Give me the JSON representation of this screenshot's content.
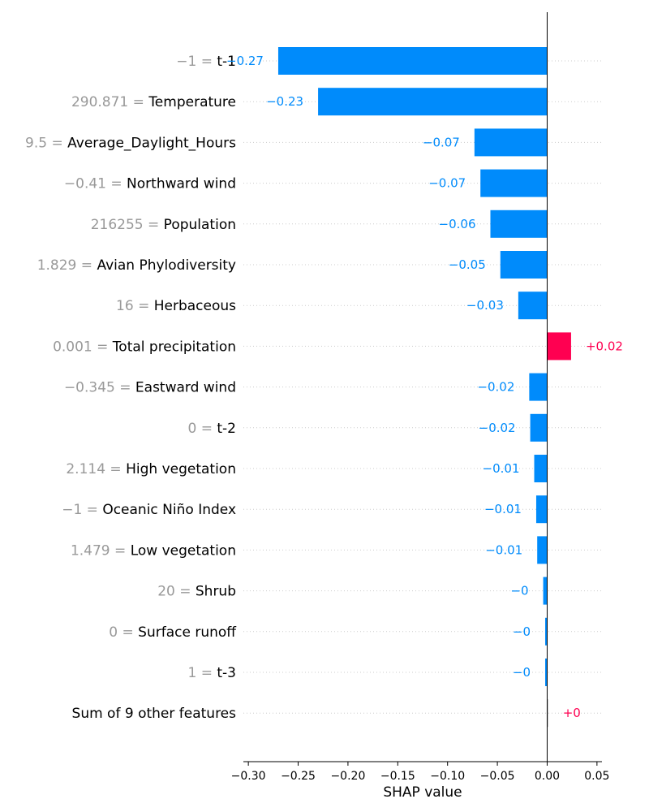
{
  "chart_data": {
    "type": "bar",
    "orientation": "horizontal",
    "xlabel": "SHAP value",
    "xlim": [
      -0.305,
      0.055
    ],
    "xticks": [
      -0.3,
      -0.25,
      -0.2,
      -0.15,
      -0.1,
      -0.05,
      0.0,
      0.05
    ],
    "xtick_labels": [
      "−0.30",
      "−0.25",
      "−0.20",
      "−0.15",
      "−0.10",
      "−0.05",
      "0.00",
      "0.05"
    ],
    "grid": "horizontal-dotted",
    "colors": {
      "negative": "#008bfb",
      "positive": "#ff0051",
      "other": "#cccccc",
      "feature_value_text": "#999999"
    },
    "features": [
      {
        "value": "−1",
        "name": "t-1",
        "shap": -0.27,
        "label": "−0.27"
      },
      {
        "value": "290.871",
        "name": "Temperature",
        "shap": -0.23,
        "label": "−0.23"
      },
      {
        "value": "9.5",
        "name": "Average_Daylight_Hours",
        "shap": -0.073,
        "label": "−0.07"
      },
      {
        "value": "−0.41",
        "name": "Northward wind",
        "shap": -0.067,
        "label": "−0.07"
      },
      {
        "value": "216255",
        "name": "Population",
        "shap": -0.057,
        "label": "−0.06"
      },
      {
        "value": "1.829",
        "name": "Avian Phylodiversity",
        "shap": -0.047,
        "label": "−0.05"
      },
      {
        "value": "16",
        "name": "Herbaceous",
        "shap": -0.029,
        "label": "−0.03"
      },
      {
        "value": "0.001",
        "name": "Total precipitation",
        "shap": 0.024,
        "label": "+0.02"
      },
      {
        "value": "−0.345",
        "name": "Eastward wind",
        "shap": -0.018,
        "label": "−0.02"
      },
      {
        "value": "0",
        "name": "t-2",
        "shap": -0.017,
        "label": "−0.02"
      },
      {
        "value": "2.114",
        "name": "High vegetation",
        "shap": -0.013,
        "label": "−0.01"
      },
      {
        "value": "−1",
        "name": "Oceanic Niño Index",
        "shap": -0.011,
        "label": "−0.01"
      },
      {
        "value": "1.479",
        "name": "Low vegetation",
        "shap": -0.01,
        "label": "−0.01"
      },
      {
        "value": "20",
        "name": "Shrub",
        "shap": -0.004,
        "label": "−0"
      },
      {
        "value": "0",
        "name": "Surface runoff",
        "shap": -0.002,
        "label": "−0"
      },
      {
        "value": "1",
        "name": "t-3",
        "shap": -0.002,
        "label": "−0"
      },
      {
        "value": "",
        "name": "Sum of 9 other features",
        "shap": 0.001,
        "label": "+0",
        "other": true
      }
    ]
  }
}
